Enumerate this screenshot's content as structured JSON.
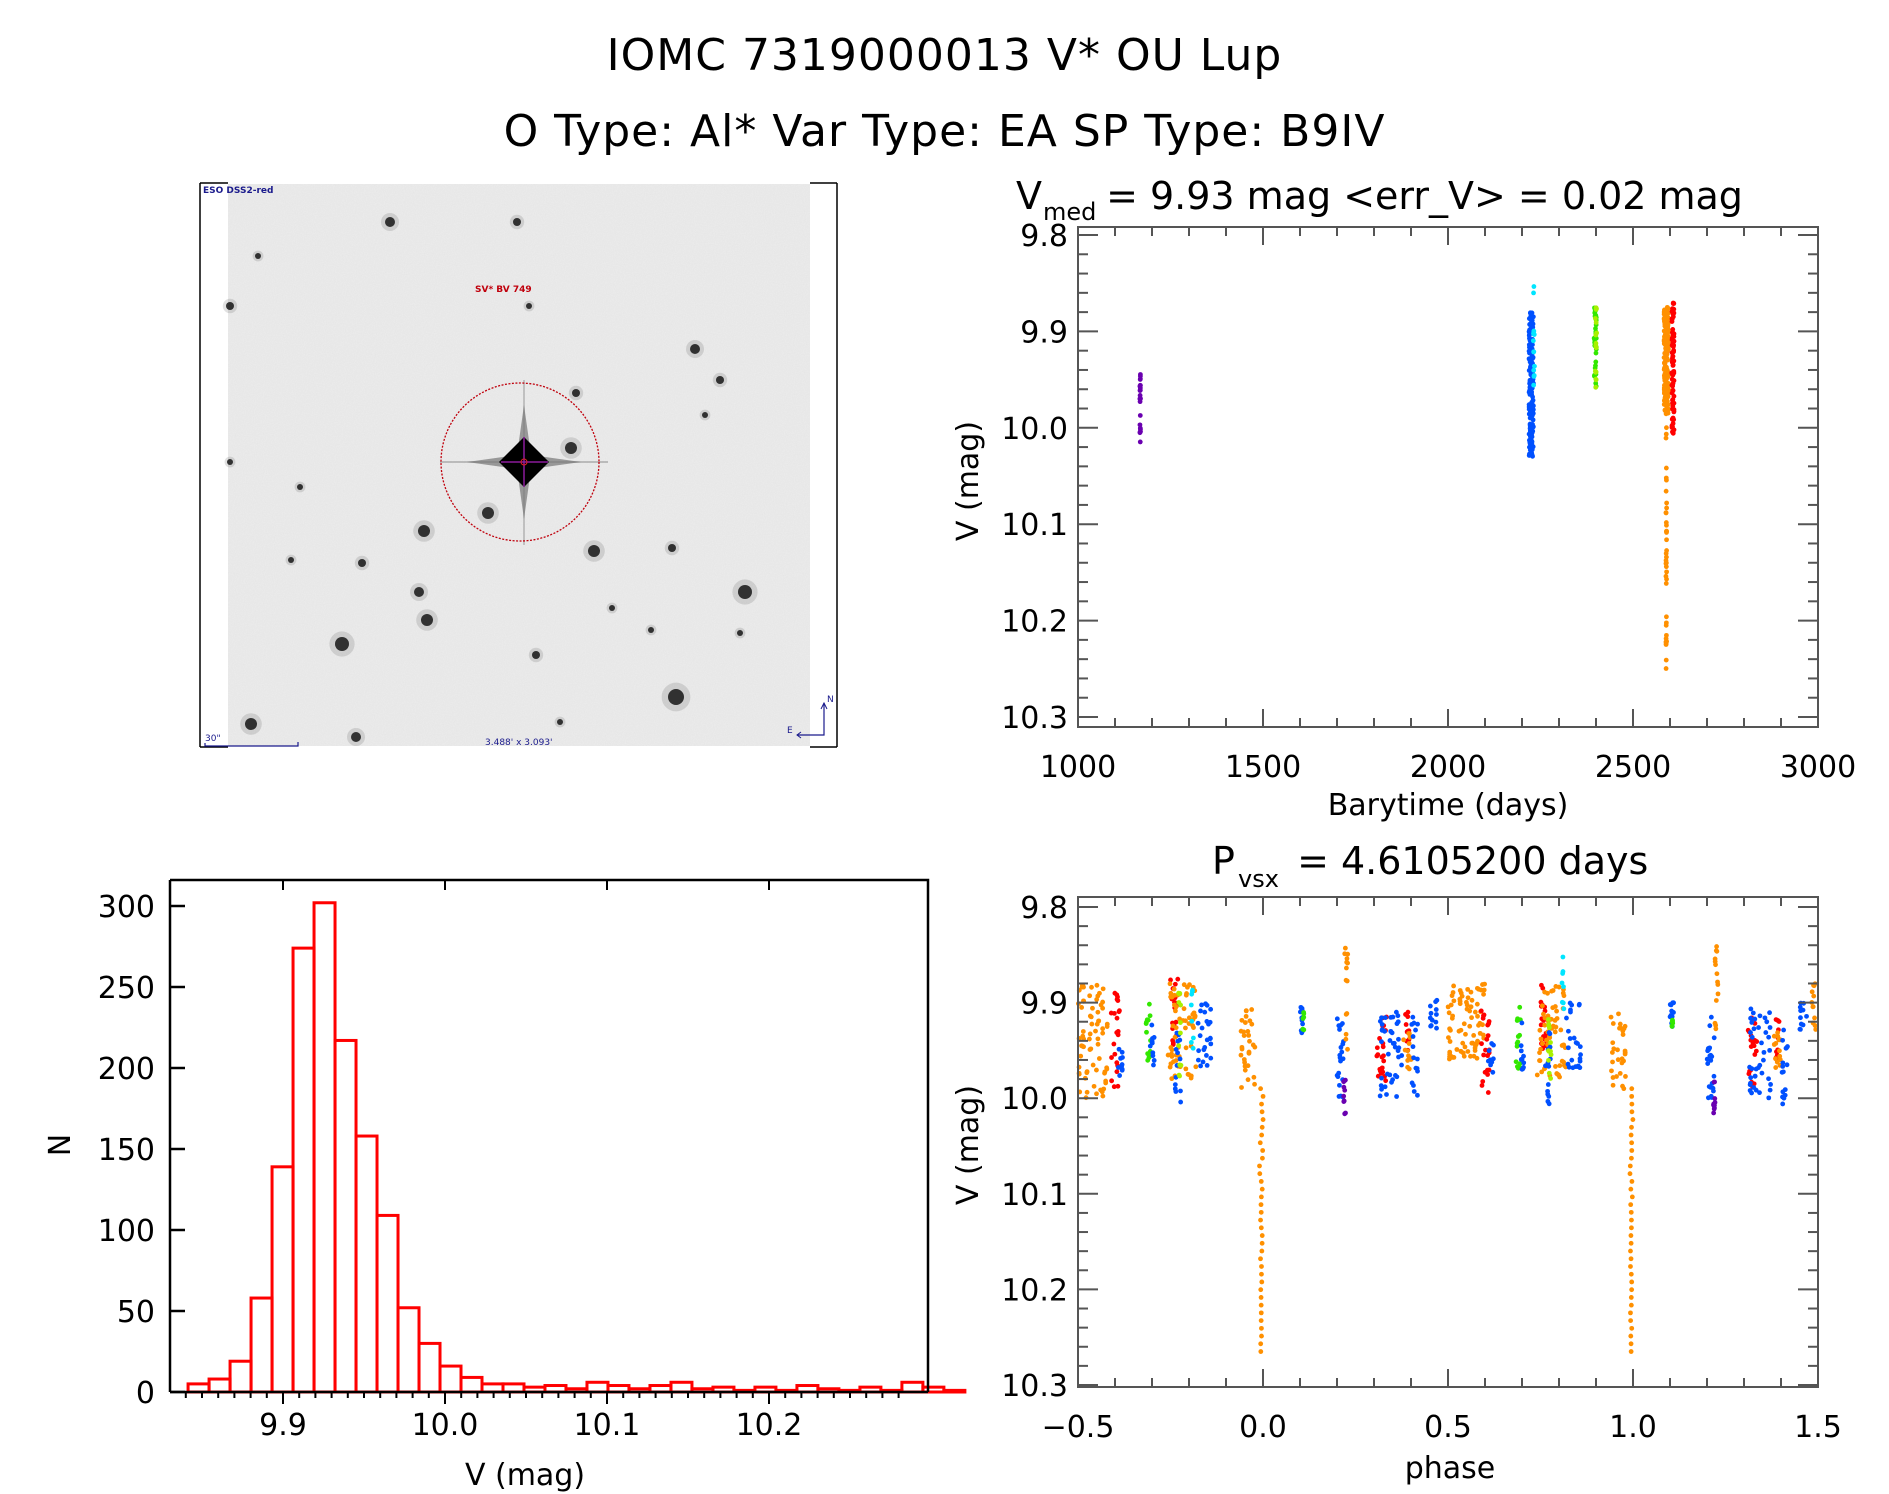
{
  "header": {
    "title_line1": "IOMC 7319000013   V* OU Lup",
    "title_line2": "O Type: Al*  Var Type: EA  SP Type: B9IV"
  },
  "sky_image": {
    "survey_label": "ESO DSS2-red",
    "target_label": "SV* BV 749",
    "scale_label": "30\"",
    "fov_label": "3.488' x 3.093'",
    "compass_north": "N",
    "compass_east": "E",
    "circle_color": "#c0000c",
    "label_color": "#1a1a8c"
  },
  "chart_data": [
    {
      "id": "histogram",
      "type": "bar",
      "title": "",
      "xlabel": "V (mag)",
      "ylabel": "N",
      "xlim": [
        9.83,
        10.285
      ],
      "ylim": [
        0,
        320
      ],
      "xticks": [
        "9.9",
        "10.0",
        "10.1",
        "10.2"
      ],
      "xtick_values": [
        9.9,
        10.0,
        10.1,
        10.2
      ],
      "yticks": [
        "0",
        "50",
        "100",
        "150",
        "200",
        "250",
        "300"
      ],
      "ytick_values": [
        0,
        50,
        100,
        150,
        200,
        250,
        300
      ],
      "bin_start": 9.8414,
      "bin_width": 0.01296,
      "values": [
        5,
        8,
        19,
        58,
        139,
        274,
        302,
        217,
        158,
        109,
        52,
        30,
        16,
        9,
        5,
        5,
        3,
        4,
        2,
        6,
        4,
        2,
        4,
        6,
        2,
        3,
        1,
        3,
        1,
        4,
        2,
        1,
        3,
        1,
        6,
        3,
        1
      ],
      "color": "#ff0000",
      "grid": false
    },
    {
      "id": "light-curve",
      "type": "scatter",
      "title": "V_med = 9.93 mag <err_V> = 0.02 mag",
      "title_main": "V",
      "title_sub": "med",
      "title_rest": " = 9.93 mag <err_V> = 0.02 mag",
      "xlabel": "Barytime (days)",
      "ylabel": "V (mag)",
      "xlim": [
        1000,
        3000
      ],
      "ylim": [
        9.8,
        10.3
      ],
      "y_inverted": true,
      "xticks": [
        "1000",
        "1500",
        "2000",
        "2500",
        "3000"
      ],
      "xtick_values": [
        1000,
        1500,
        2000,
        2500,
        3000
      ],
      "yticks": [
        "9.8",
        "9.9",
        "10.0",
        "10.1",
        "10.2",
        "10.3"
      ],
      "ytick_values": [
        9.8,
        9.9,
        10.0,
        10.1,
        10.2,
        10.3
      ],
      "series": [
        {
          "name": "season-1",
          "color": "#6a00b0",
          "x_center": 1168,
          "x_spread": 1,
          "y_min": 9.93,
          "y_max": 10.015,
          "n": 22
        },
        {
          "name": "season-2",
          "color": "#0050ff",
          "x_center": 2225,
          "x_spread": 6,
          "y_min": 9.88,
          "y_max": 10.03,
          "n": 180
        },
        {
          "name": "season-2b",
          "color": "#00e5ff",
          "x_center": 2232,
          "x_spread": 2,
          "y_min": 9.85,
          "y_max": 9.96,
          "n": 14
        },
        {
          "name": "season-3",
          "color": "#32e800",
          "x_center": 2398,
          "x_spread": 3,
          "y_min": 9.875,
          "y_max": 9.96,
          "n": 30
        },
        {
          "name": "season-3b",
          "color": "#a8f000",
          "x_center": 2400,
          "x_spread": 2,
          "y_min": 9.875,
          "y_max": 9.96,
          "n": 16
        },
        {
          "name": "season-4",
          "color": "#ff9000",
          "x_center": 2590,
          "x_spread": 6,
          "y_min": 9.875,
          "y_max": 9.985,
          "n": 220
        },
        {
          "name": "season-4-eclipse",
          "color": "#ff9000",
          "x_center": 2590,
          "x_spread": 1,
          "y_min": 9.985,
          "y_max": 10.265,
          "n": 40
        },
        {
          "name": "season-5",
          "color": "#ff0000",
          "x_center": 2608,
          "x_spread": 3,
          "y_min": 9.87,
          "y_max": 10.01,
          "n": 80
        }
      ]
    },
    {
      "id": "phase-curve",
      "type": "scatter",
      "title": "P_vsx = 4.6105200 days",
      "title_main": "P",
      "title_sub": "vsx",
      "title_rest": " = 4.6105200 days",
      "xlabel": "phase",
      "ylabel": "V (mag)",
      "xlim": [
        -0.5,
        1.5
      ],
      "ylim": [
        9.8,
        10.3
      ],
      "y_inverted": true,
      "period_days": 4.61052,
      "xticks": [
        "−0.5",
        "0.0",
        "0.5",
        "1.0",
        "1.5"
      ],
      "xtick_values": [
        -0.5,
        0.0,
        0.5,
        1.0,
        1.5
      ],
      "yticks": [
        "9.8",
        "9.9",
        "10.0",
        "10.1",
        "10.2",
        "10.3"
      ],
      "ytick_values": [
        9.8,
        9.9,
        10.0,
        10.1,
        10.2,
        10.3
      ],
      "primary_eclipse_phase": 0.0,
      "primary_eclipse_depth_mag": 10.265,
      "baseline_mag": 9.93,
      "clusters": [
        {
          "color": "#ff9000",
          "phase": -0.46,
          "spread": 0.04,
          "y_min": 9.88,
          "y_max": 10.0,
          "n": 70
        },
        {
          "color": "#ff0000",
          "phase": -0.4,
          "spread": 0.012,
          "y_min": 9.89,
          "y_max": 10.0,
          "n": 22
        },
        {
          "color": "#0050ff",
          "phase": -0.385,
          "spread": 0.008,
          "y_min": 9.94,
          "y_max": 9.98,
          "n": 10
        },
        {
          "color": "#32e800",
          "phase": -0.31,
          "spread": 0.006,
          "y_min": 9.9,
          "y_max": 9.97,
          "n": 14
        },
        {
          "color": "#0050ff",
          "phase": -0.3,
          "spread": 0.006,
          "y_min": 9.92,
          "y_max": 9.97,
          "n": 10
        },
        {
          "color": "#ff0000",
          "phase": -0.24,
          "spread": 0.01,
          "y_min": 9.875,
          "y_max": 9.95,
          "n": 20
        },
        {
          "color": "#ff9000",
          "phase": -0.22,
          "spread": 0.04,
          "y_min": 9.88,
          "y_max": 9.98,
          "n": 60
        },
        {
          "color": "#0050ff",
          "phase": -0.23,
          "spread": 0.008,
          "y_min": 9.93,
          "y_max": 10.01,
          "n": 14
        },
        {
          "color": "#a8f000",
          "phase": -0.225,
          "spread": 0.004,
          "y_min": 9.89,
          "y_max": 9.98,
          "n": 12
        },
        {
          "color": "#00e5ff",
          "phase": -0.19,
          "spread": 0.004,
          "y_min": 9.85,
          "y_max": 9.955,
          "n": 8
        },
        {
          "color": "#0050ff",
          "phase": -0.16,
          "spread": 0.02,
          "y_min": 9.9,
          "y_max": 9.97,
          "n": 25
        },
        {
          "color": "#ff9000",
          "phase": -0.04,
          "spread": 0.02,
          "y_min": 9.905,
          "y_max": 9.99,
          "n": 30
        },
        {
          "color": "#ff9000",
          "phase": -0.005,
          "spread": 0.006,
          "y_min": 9.99,
          "y_max": 10.265,
          "n": 35
        },
        {
          "color": "#0050ff",
          "phase": 0.105,
          "spread": 0.005,
          "y_min": 9.9,
          "y_max": 9.935,
          "n": 12
        },
        {
          "color": "#32e800",
          "phase": 0.108,
          "spread": 0.003,
          "y_min": 9.91,
          "y_max": 9.93,
          "n": 6
        },
        {
          "color": "#0050ff",
          "phase": 0.21,
          "spread": 0.01,
          "y_min": 9.915,
          "y_max": 10.0,
          "n": 22
        },
        {
          "color": "#6a00b0",
          "phase": 0.22,
          "spread": 0.003,
          "y_min": 9.98,
          "y_max": 10.02,
          "n": 10
        },
        {
          "color": "#ff9000",
          "phase": 0.225,
          "spread": 0.005,
          "y_min": 9.84,
          "y_max": 9.95,
          "n": 14
        },
        {
          "color": "#ff0000",
          "phase": 0.32,
          "spread": 0.015,
          "y_min": 9.915,
          "y_max": 9.99,
          "n": 22
        },
        {
          "color": "#0050ff",
          "phase": 0.345,
          "spread": 0.03,
          "y_min": 9.905,
          "y_max": 10.0,
          "n": 40
        },
        {
          "color": "#ff0000",
          "phase": 0.39,
          "spread": 0.005,
          "y_min": 9.91,
          "y_max": 9.96,
          "n": 10
        },
        {
          "color": "#ff9000",
          "phase": 0.39,
          "spread": 0.01,
          "y_min": 9.93,
          "y_max": 9.97,
          "n": 14
        },
        {
          "color": "#0050ff",
          "phase": 0.41,
          "spread": 0.008,
          "y_min": 9.915,
          "y_max": 10.01,
          "n": 16
        },
        {
          "color": "#0050ff",
          "phase": 0.46,
          "spread": 0.01,
          "y_min": 9.895,
          "y_max": 9.93,
          "n": 12
        },
        {
          "color": "#ff9000",
          "phase": 0.55,
          "spread": 0.05,
          "y_min": 9.88,
          "y_max": 9.96,
          "n": 80
        },
        {
          "color": "#ff0000",
          "phase": 0.6,
          "spread": 0.012,
          "y_min": 9.9,
          "y_max": 10.0,
          "n": 22
        },
        {
          "color": "#0050ff",
          "phase": 0.615,
          "spread": 0.008,
          "y_min": 9.94,
          "y_max": 9.98,
          "n": 10
        },
        {
          "color": "#32e800",
          "phase": 0.69,
          "spread": 0.006,
          "y_min": 9.9,
          "y_max": 9.97,
          "n": 14
        },
        {
          "color": "#0050ff",
          "phase": 0.7,
          "spread": 0.006,
          "y_min": 9.92,
          "y_max": 9.97,
          "n": 10
        },
        {
          "color": "#ff0000",
          "phase": 0.76,
          "spread": 0.01,
          "y_min": 9.875,
          "y_max": 9.95,
          "n": 20
        },
        {
          "color": "#ff9000",
          "phase": 0.78,
          "spread": 0.04,
          "y_min": 9.88,
          "y_max": 9.98,
          "n": 60
        },
        {
          "color": "#0050ff",
          "phase": 0.77,
          "spread": 0.008,
          "y_min": 9.93,
          "y_max": 10.01,
          "n": 14
        },
        {
          "color": "#a8f000",
          "phase": 0.775,
          "spread": 0.004,
          "y_min": 9.89,
          "y_max": 9.98,
          "n": 12
        },
        {
          "color": "#00e5ff",
          "phase": 0.81,
          "spread": 0.004,
          "y_min": 9.85,
          "y_max": 9.955,
          "n": 8
        },
        {
          "color": "#0050ff",
          "phase": 0.84,
          "spread": 0.02,
          "y_min": 9.9,
          "y_max": 9.97,
          "n": 25
        },
        {
          "color": "#ff9000",
          "phase": 0.96,
          "spread": 0.02,
          "y_min": 9.905,
          "y_max": 9.99,
          "n": 30
        },
        {
          "color": "#ff9000",
          "phase": 0.995,
          "spread": 0.006,
          "y_min": 9.99,
          "y_max": 10.265,
          "n": 35
        },
        {
          "color": "#0050ff",
          "phase": 1.105,
          "spread": 0.005,
          "y_min": 9.9,
          "y_max": 9.935,
          "n": 12
        },
        {
          "color": "#32e800",
          "phase": 1.108,
          "spread": 0.003,
          "y_min": 9.91,
          "y_max": 9.93,
          "n": 6
        },
        {
          "color": "#0050ff",
          "phase": 1.21,
          "spread": 0.01,
          "y_min": 9.915,
          "y_max": 10.0,
          "n": 22
        },
        {
          "color": "#6a00b0",
          "phase": 1.22,
          "spread": 0.003,
          "y_min": 9.98,
          "y_max": 10.02,
          "n": 10
        },
        {
          "color": "#ff9000",
          "phase": 1.225,
          "spread": 0.005,
          "y_min": 9.84,
          "y_max": 9.95,
          "n": 14
        },
        {
          "color": "#ff0000",
          "phase": 1.32,
          "spread": 0.015,
          "y_min": 9.915,
          "y_max": 9.99,
          "n": 22
        },
        {
          "color": "#0050ff",
          "phase": 1.345,
          "spread": 0.03,
          "y_min": 9.905,
          "y_max": 10.0,
          "n": 40
        },
        {
          "color": "#ff0000",
          "phase": 1.39,
          "spread": 0.005,
          "y_min": 9.91,
          "y_max": 9.96,
          "n": 10
        },
        {
          "color": "#ff9000",
          "phase": 1.39,
          "spread": 0.01,
          "y_min": 9.93,
          "y_max": 9.97,
          "n": 14
        },
        {
          "color": "#0050ff",
          "phase": 1.41,
          "spread": 0.008,
          "y_min": 9.915,
          "y_max": 10.01,
          "n": 16
        },
        {
          "color": "#0050ff",
          "phase": 1.46,
          "spread": 0.01,
          "y_min": 9.895,
          "y_max": 9.93,
          "n": 12
        },
        {
          "color": "#ff9000",
          "phase": 1.49,
          "spread": 0.01,
          "y_min": 9.88,
          "y_max": 9.93,
          "n": 12
        }
      ]
    }
  ]
}
